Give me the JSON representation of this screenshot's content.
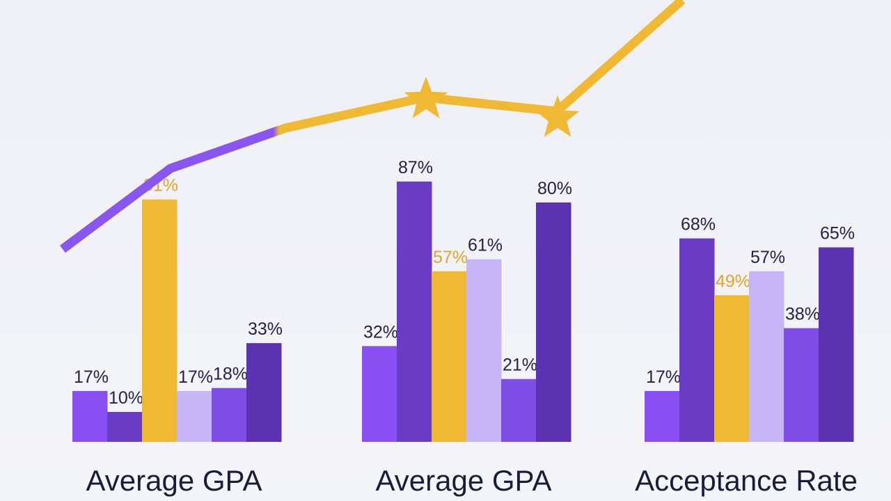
{
  "chart_data": {
    "type": "bar",
    "categories": [
      "Average GPA",
      "Average GPA",
      "Acceptance Rate"
    ],
    "series_count": 6,
    "groups": [
      {
        "label": "Average GPA",
        "values": [
          17,
          10,
          81,
          17,
          18,
          33
        ]
      },
      {
        "label": "Average GPA",
        "values": [
          32,
          87,
          57,
          61,
          21,
          80
        ]
      },
      {
        "label": "Acceptance Rate",
        "values": [
          17,
          68,
          49,
          57,
          38,
          65
        ]
      }
    ],
    "trend_line": {
      "type": "line",
      "values": [
        1,
        2,
        3,
        4,
        5,
        6,
        7,
        8
      ]
    },
    "colors": [
      "#8a4ff2",
      "#6a3cc4",
      "#f0b934",
      "#c7b6f6",
      "#7f4ee6",
      "#5b33b0"
    ],
    "label_color": "#262044",
    "highlight_label_color": "#e0a52a",
    "trend_colors": {
      "start": "#8a56f0",
      "end": "#f0b934"
    },
    "grid": false,
    "legend": "none"
  }
}
